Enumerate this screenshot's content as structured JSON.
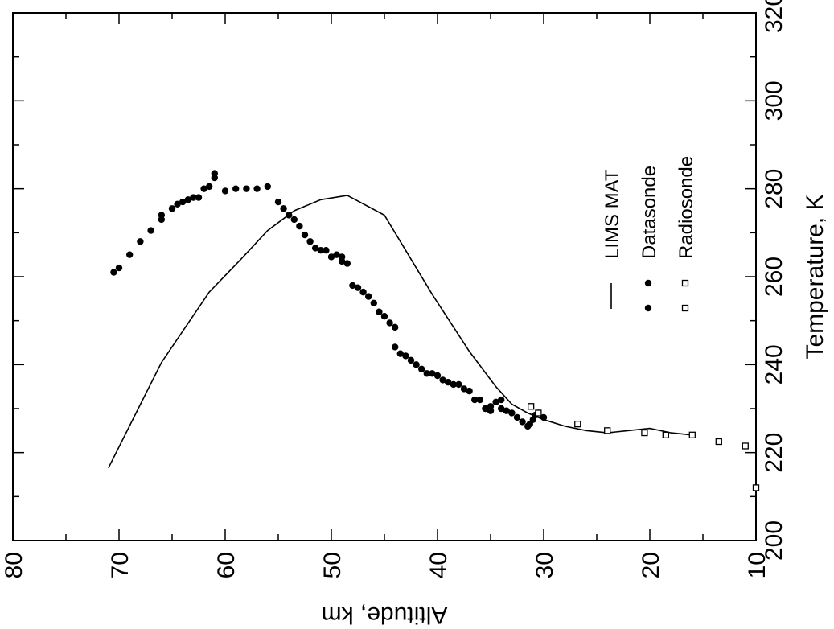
{
  "chart_data": {
    "type": "scatter",
    "xlabel": "Temperature, K",
    "ylabel": "Altitude, km",
    "xlim": [
      200,
      320
    ],
    "ylim": [
      10,
      80
    ],
    "x_ticks": [
      "200",
      "220",
      "240",
      "260",
      "280",
      "300",
      "320"
    ],
    "y_ticks": [
      "10",
      "20",
      "30",
      "40",
      "50",
      "60",
      "70",
      "80"
    ],
    "grid": false,
    "legend_position": "right",
    "series": [
      {
        "name": "LIMS MAT",
        "kind": "line",
        "points": [
          {
            "t": 216.5,
            "alt": 71
          },
          {
            "t": 240.5,
            "alt": 66
          },
          {
            "t": 256.5,
            "alt": 61.5
          },
          {
            "t": 264,
            "alt": 58.5
          },
          {
            "t": 270.5,
            "alt": 56
          },
          {
            "t": 275,
            "alt": 53.5
          },
          {
            "t": 277.5,
            "alt": 51
          },
          {
            "t": 278.5,
            "alt": 48.5
          },
          {
            "t": 274,
            "alt": 45
          },
          {
            "t": 266,
            "alt": 43
          },
          {
            "t": 256,
            "alt": 40.5
          },
          {
            "t": 243,
            "alt": 37
          },
          {
            "t": 235,
            "alt": 34.5
          },
          {
            "t": 231,
            "alt": 33
          },
          {
            "t": 229,
            "alt": 31.5
          },
          {
            "t": 227.5,
            "alt": 30
          },
          {
            "t": 226,
            "alt": 28
          },
          {
            "t": 225,
            "alt": 26
          },
          {
            "t": 224.5,
            "alt": 24
          },
          {
            "t": 225,
            "alt": 22
          },
          {
            "t": 225.5,
            "alt": 20
          },
          {
            "t": 224.5,
            "alt": 18
          },
          {
            "t": 224,
            "alt": 16
          }
        ]
      },
      {
        "name": "Datasonde",
        "kind": "points",
        "marker": "filled-circle",
        "points": [
          {
            "t": 261,
            "alt": 70.5
          },
          {
            "t": 262,
            "alt": 70
          },
          {
            "t": 265,
            "alt": 69
          },
          {
            "t": 268,
            "alt": 68
          },
          {
            "t": 270.5,
            "alt": 67
          },
          {
            "t": 273,
            "alt": 66
          },
          {
            "t": 274,
            "alt": 66
          },
          {
            "t": 275.5,
            "alt": 65
          },
          {
            "t": 276.5,
            "alt": 64.5
          },
          {
            "t": 277,
            "alt": 64
          },
          {
            "t": 277.5,
            "alt": 63.5
          },
          {
            "t": 278,
            "alt": 63
          },
          {
            "t": 278,
            "alt": 62.5
          },
          {
            "t": 280,
            "alt": 62
          },
          {
            "t": 280.5,
            "alt": 61.5
          },
          {
            "t": 282.5,
            "alt": 61
          },
          {
            "t": 283.5,
            "alt": 61
          },
          {
            "t": 279.5,
            "alt": 60
          },
          {
            "t": 280,
            "alt": 59
          },
          {
            "t": 280,
            "alt": 58
          },
          {
            "t": 280,
            "alt": 57
          },
          {
            "t": 280.5,
            "alt": 56
          },
          {
            "t": 277,
            "alt": 55
          },
          {
            "t": 275.5,
            "alt": 54.5
          },
          {
            "t": 274,
            "alt": 54
          },
          {
            "t": 273,
            "alt": 53.5
          },
          {
            "t": 271.5,
            "alt": 53
          },
          {
            "t": 269.5,
            "alt": 52.5
          },
          {
            "t": 268,
            "alt": 52
          },
          {
            "t": 266.5,
            "alt": 51.5
          },
          {
            "t": 266,
            "alt": 51
          },
          {
            "t": 266,
            "alt": 50.5
          },
          {
            "t": 264.5,
            "alt": 50
          },
          {
            "t": 265,
            "alt": 49.5
          },
          {
            "t": 264.5,
            "alt": 49
          },
          {
            "t": 263.5,
            "alt": 49
          },
          {
            "t": 263,
            "alt": 48.5
          },
          {
            "t": 258,
            "alt": 48
          },
          {
            "t": 257.5,
            "alt": 47.5
          },
          {
            "t": 256.5,
            "alt": 47
          },
          {
            "t": 255.5,
            "alt": 46.5
          },
          {
            "t": 254,
            "alt": 46
          },
          {
            "t": 252,
            "alt": 45.5
          },
          {
            "t": 251,
            "alt": 45
          },
          {
            "t": 249.5,
            "alt": 44.5
          },
          {
            "t": 248.5,
            "alt": 44
          },
          {
            "t": 244,
            "alt": 44
          },
          {
            "t": 242.5,
            "alt": 43.5
          },
          {
            "t": 242,
            "alt": 43
          },
          {
            "t": 241,
            "alt": 42.5
          },
          {
            "t": 240,
            "alt": 42
          },
          {
            "t": 239,
            "alt": 41.5
          },
          {
            "t": 238,
            "alt": 41
          },
          {
            "t": 238,
            "alt": 40.5
          },
          {
            "t": 237.5,
            "alt": 40
          },
          {
            "t": 236.5,
            "alt": 39.5
          },
          {
            "t": 236,
            "alt": 39
          },
          {
            "t": 235.5,
            "alt": 38.5
          },
          {
            "t": 235.5,
            "alt": 38
          },
          {
            "t": 234.5,
            "alt": 37.5
          },
          {
            "t": 234,
            "alt": 37
          },
          {
            "t": 232,
            "alt": 36.5
          },
          {
            "t": 232,
            "alt": 36
          },
          {
            "t": 230,
            "alt": 35.5
          },
          {
            "t": 229.5,
            "alt": 35
          },
          {
            "t": 230.5,
            "alt": 35
          },
          {
            "t": 231.5,
            "alt": 34.5
          },
          {
            "t": 232,
            "alt": 34
          },
          {
            "t": 230,
            "alt": 34
          },
          {
            "t": 229.5,
            "alt": 33.5
          },
          {
            "t": 229,
            "alt": 33
          },
          {
            "t": 228,
            "alt": 32.5
          },
          {
            "t": 227,
            "alt": 32
          },
          {
            "t": 226,
            "alt": 31.5
          },
          {
            "t": 226.5,
            "alt": 31.3
          },
          {
            "t": 227.5,
            "alt": 31
          },
          {
            "t": 228.5,
            "alt": 30.8
          },
          {
            "t": 229,
            "alt": 30.5
          },
          {
            "t": 228,
            "alt": 30
          }
        ]
      },
      {
        "name": "Radiosonde",
        "kind": "points",
        "marker": "open-square",
        "points": [
          {
            "t": 230.5,
            "alt": 31.2
          },
          {
            "t": 229,
            "alt": 30.5
          },
          {
            "t": 226.5,
            "alt": 26.8
          },
          {
            "t": 225,
            "alt": 24
          },
          {
            "t": 224.5,
            "alt": 20.5
          },
          {
            "t": 224,
            "alt": 18.5
          },
          {
            "t": 224,
            "alt": 16
          },
          {
            "t": 222.5,
            "alt": 13.5
          },
          {
            "t": 221.5,
            "alt": 11
          },
          {
            "t": 212,
            "alt": 10
          }
        ]
      }
    ]
  }
}
